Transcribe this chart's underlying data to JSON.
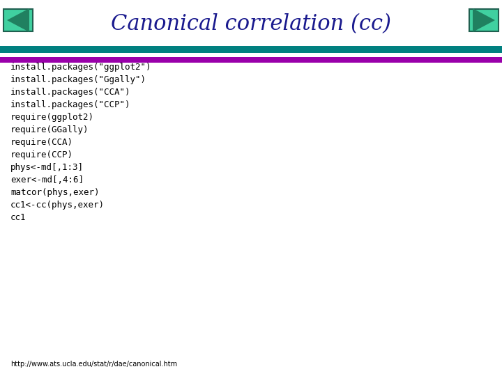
{
  "title": "Canonical correlation (cc)",
  "title_color": "#1a1a8e",
  "title_fontsize": 22,
  "slide_bg": "#ffffff",
  "header_line1_color": "#008080",
  "header_line2_color": "#9900aa",
  "code_lines": [
    "install.packages(\"ggplot2\")",
    "install.packages(\"Ggally\")",
    "install.packages(\"CCA\")",
    "install.packages(\"CCP\")",
    "require(ggplot2)",
    "require(GGally)",
    "require(CCA)",
    "require(CCP)",
    "phys<-md[,1:3]",
    "exer<-md[,4:6]",
    "matcor(phys,exer)",
    "cc1<-cc(phys,exer)",
    "cc1"
  ],
  "code_color": "#000000",
  "code_fontsize": 9,
  "footer_text": "http://www.ats.ucla.edu/stat/r/dae/canonical.htm",
  "footer_color": "#000000",
  "footer_fontsize": 7,
  "arrow_fill": "#20b2aa",
  "arrow_edge": "#006060"
}
